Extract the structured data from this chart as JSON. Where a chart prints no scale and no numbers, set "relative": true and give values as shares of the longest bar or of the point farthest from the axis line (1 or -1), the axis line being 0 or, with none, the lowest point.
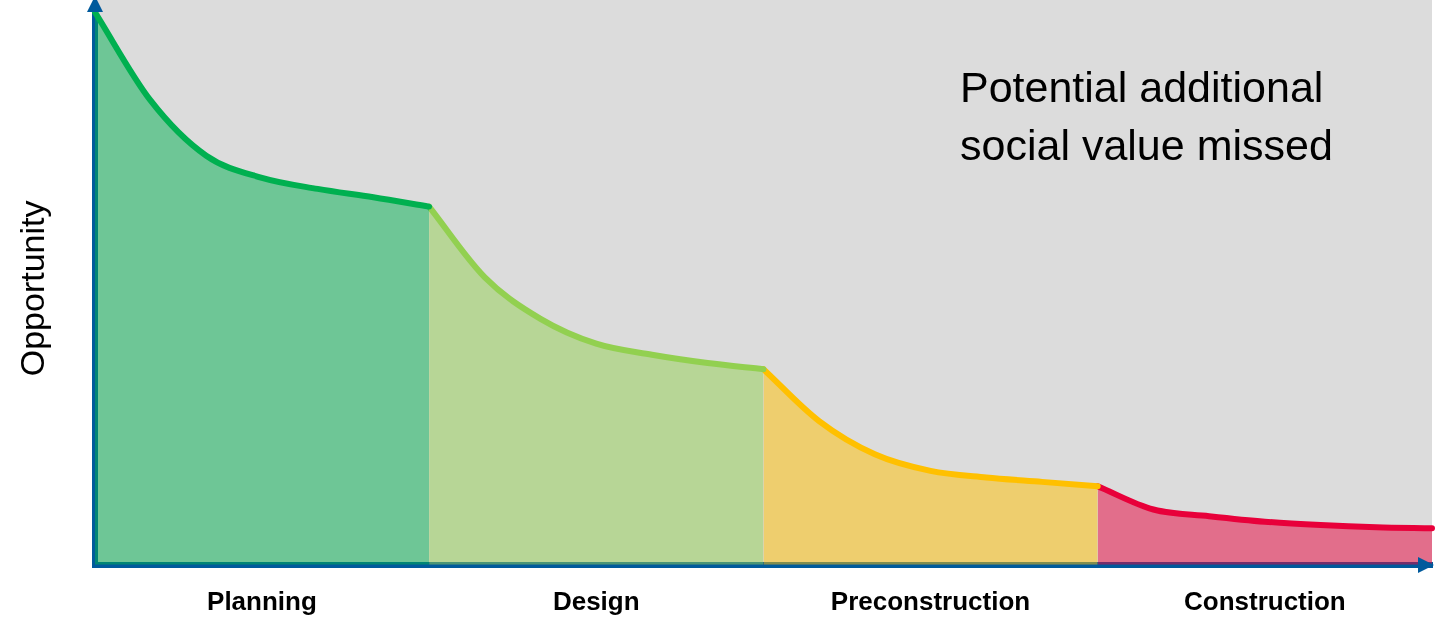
{
  "chart_data": {
    "type": "area",
    "relative": true,
    "ylabel": "Opportunity",
    "legend": false,
    "categories": [
      null,
      null,
      null,
      "Planning",
      null,
      null,
      null,
      null,
      null,
      "Design",
      null,
      null,
      null,
      null,
      null,
      "Preconstruction",
      null,
      null,
      null,
      null,
      null,
      "Construction",
      null,
      null,
      null
    ],
    "series": [
      {
        "color": "#00b050",
        "values": [
          1.0,
          0.84,
          0.74,
          0.7,
          0.68,
          0.665,
          0.648,
          null,
          null,
          null,
          null,
          null,
          null,
          null,
          null,
          null,
          null,
          null,
          null,
          null,
          null,
          null,
          null,
          null,
          null
        ]
      },
      {
        "color": "#92d050",
        "values": [
          null,
          null,
          null,
          null,
          null,
          null,
          0.648,
          0.52,
          0.445,
          0.4,
          0.38,
          0.365,
          0.354,
          null,
          null,
          null,
          null,
          null,
          null,
          null,
          null,
          null,
          null,
          null,
          null
        ]
      },
      {
        "color": "#ffc000",
        "values": [
          null,
          null,
          null,
          null,
          null,
          null,
          null,
          null,
          null,
          null,
          null,
          null,
          0.354,
          0.26,
          0.2,
          0.17,
          0.158,
          0.15,
          0.142,
          null,
          null,
          null,
          null,
          null,
          null
        ]
      },
      {
        "color": "#e8003a",
        "values": [
          null,
          null,
          null,
          null,
          null,
          null,
          null,
          null,
          null,
          null,
          null,
          null,
          null,
          null,
          null,
          null,
          null,
          null,
          0.142,
          0.1,
          0.088,
          0.078,
          0.072,
          0.068,
          0.066
        ]
      }
    ],
    "annotations": [
      "Potential additional social value missed"
    ]
  }
}
